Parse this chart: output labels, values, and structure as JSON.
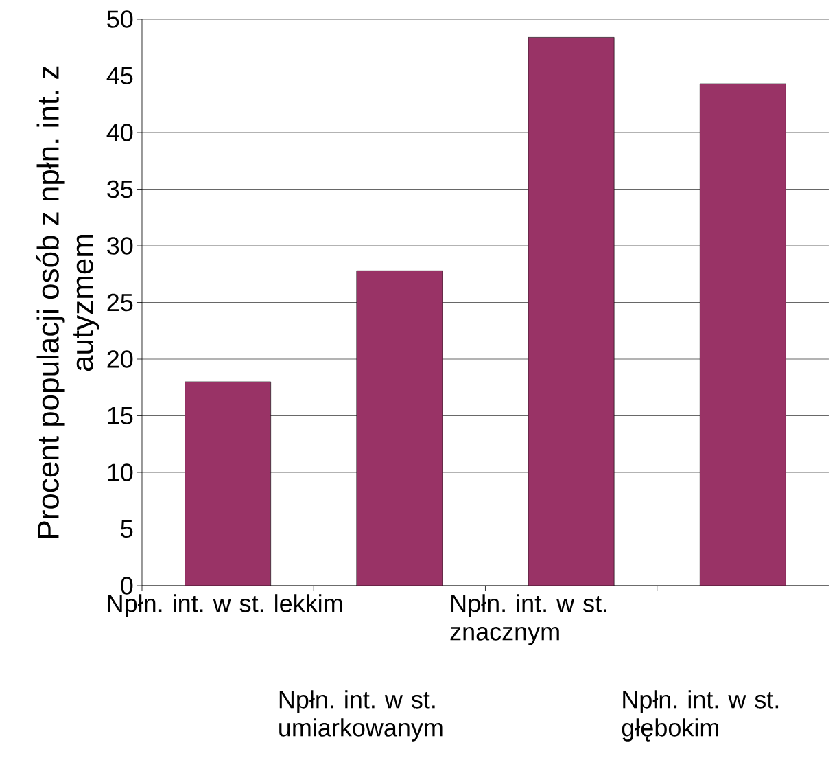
{
  "chart_data": {
    "type": "bar",
    "ylabel": "Procent populacji osób z npłn. int. z autyzmem",
    "categories": [
      "Npłn. int. w st. lekkim",
      "Npłn. int. w st. umiarkowanym",
      "Npłn. int. w st. znacznym",
      "Npłn. int. w st. głębokim"
    ],
    "values": [
      18,
      27.8,
      48.4,
      44.3
    ],
    "color": "#993366",
    "ylim": [
      0,
      50
    ],
    "yticks": [
      0,
      5,
      10,
      15,
      20,
      25,
      30,
      35,
      40,
      45,
      50
    ],
    "grid": "y"
  }
}
